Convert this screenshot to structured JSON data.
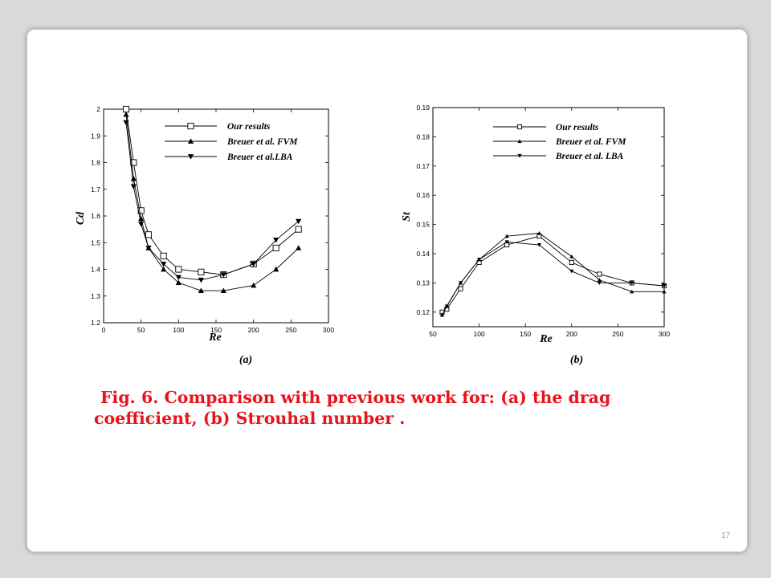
{
  "slide": {
    "page_number": "17"
  },
  "caption": {
    "line1": "Fig. 6. Comparison with previous work for: (a) the drag",
    "line2": "coefficient, (b) Strouhal number ."
  },
  "chart_data": [
    {
      "id": "a",
      "type": "line",
      "sublabel": "(a)",
      "xlabel": "Re",
      "ylabel": "Cd",
      "xlim": [
        0,
        300
      ],
      "ylim": [
        1.2,
        2
      ],
      "xticks": [
        0,
        50,
        100,
        150,
        200,
        250,
        300
      ],
      "yticks": [
        1.2,
        1.3,
        1.4,
        1.5,
        1.6,
        1.7,
        1.8,
        1.9,
        2
      ],
      "yticklabels": [
        "1.2",
        "1.3",
        "1.4",
        "1.5",
        "1.6",
        "1.7",
        "1.8",
        "1.9",
        "2"
      ],
      "legend_position": "top-right",
      "series": [
        {
          "name": "Our results",
          "marker": "square",
          "x": [
            30,
            40,
            50,
            60,
            80,
            100,
            130,
            160,
            200,
            230,
            260
          ],
          "y": [
            2.0,
            1.8,
            1.62,
            1.53,
            1.45,
            1.4,
            1.39,
            1.38,
            1.42,
            1.48,
            1.55
          ]
        },
        {
          "name": "Breuer et al. FVM",
          "marker": "triangle-up",
          "x": [
            30,
            40,
            50,
            60,
            80,
            100,
            130,
            160,
            200,
            230,
            260
          ],
          "y": [
            1.98,
            1.74,
            1.59,
            1.48,
            1.4,
            1.35,
            1.32,
            1.32,
            1.34,
            1.4,
            1.48
          ]
        },
        {
          "name": "Breuer et al.LBA",
          "marker": "triangle-down",
          "x": [
            30,
            40,
            50,
            60,
            80,
            100,
            130,
            160,
            200,
            230,
            260
          ],
          "y": [
            1.95,
            1.71,
            1.57,
            1.48,
            1.42,
            1.37,
            1.36,
            1.38,
            1.42,
            1.51,
            1.58
          ]
        }
      ]
    },
    {
      "id": "b",
      "type": "line",
      "sublabel": "(b)",
      "xlabel": "Re",
      "ylabel": "St",
      "xlim": [
        50,
        300
      ],
      "ylim": [
        0.115,
        0.19
      ],
      "xticks": [
        50,
        100,
        150,
        200,
        250,
        300
      ],
      "yticks": [
        0.12,
        0.13,
        0.14,
        0.15,
        0.16,
        0.17,
        0.18,
        0.19
      ],
      "yticklabels": [
        "0.12",
        "0.13",
        "0.14",
        "0.15",
        "0.16",
        "0.17",
        "0.18",
        "0.19"
      ],
      "legend_position": "top-right",
      "series": [
        {
          "name": "Our results",
          "marker": "square",
          "x": [
            60,
            65,
            80,
            100,
            130,
            165,
            200,
            230,
            265,
            300
          ],
          "y": [
            0.12,
            0.121,
            0.128,
            0.137,
            0.143,
            0.146,
            0.137,
            0.133,
            0.13,
            0.129
          ]
        },
        {
          "name": "Breuer et al. FVM",
          "marker": "triangle-up",
          "x": [
            60,
            65,
            80,
            100,
            130,
            165,
            200,
            230,
            265,
            300
          ],
          "y": [
            0.119,
            0.122,
            0.13,
            0.138,
            0.146,
            0.147,
            0.139,
            0.131,
            0.127,
            0.127
          ]
        },
        {
          "name": "Breuer et al. LBA",
          "marker": "triangle-down",
          "x": [
            60,
            65,
            80,
            100,
            130,
            165,
            200,
            230,
            265,
            300
          ],
          "y": [
            0.119,
            0.122,
            0.13,
            0.138,
            0.144,
            0.143,
            0.134,
            0.13,
            0.13,
            0.129
          ]
        }
      ]
    }
  ]
}
